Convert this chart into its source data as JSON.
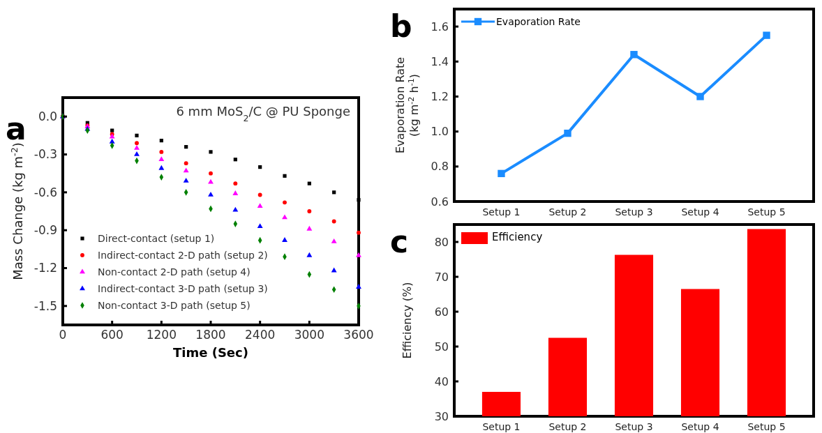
{
  "chart_data": [
    {
      "type": "scatter",
      "xlabel": "Time (Sec)",
      "ylabel": "Mass Change (kg m$^{-2}$)",
      "annotations": [
        "a",
        "6 mm MoS$_{2}$/C @ PU Sponge"
      ],
      "x": [
        0,
        300,
        600,
        900,
        1200,
        1500,
        1800,
        2100,
        2400,
        2700,
        3000,
        3300,
        3600
      ],
      "xlim": [
        0,
        3600
      ],
      "xticks": [
        0,
        600,
        1200,
        1800,
        2400,
        3000,
        3600
      ],
      "ylim": [
        -1.65,
        0.15
      ],
      "yticks": [
        {
          "value": 0,
          "label": "0.0"
        },
        -0.3,
        -0.6,
        -0.9,
        -1.2,
        -1.5
      ],
      "legend": "bottom left",
      "series": [
        {
          "name": "Direct-contact (setup 1)",
          "color": "#000000",
          "marker": "square",
          "values": [
            0,
            -0.05,
            -0.11,
            -0.15,
            -0.19,
            -0.24,
            -0.28,
            -0.34,
            -0.4,
            -0.47,
            -0.53,
            -0.6,
            -0.66
          ]
        },
        {
          "name": "Indirect-contact 2-D path (setup 2)",
          "color": "#ff0000",
          "marker": "circle",
          "values": [
            0,
            -0.07,
            -0.14,
            -0.21,
            -0.28,
            -0.37,
            -0.45,
            -0.53,
            -0.62,
            -0.68,
            -0.75,
            -0.83,
            -0.92
          ]
        },
        {
          "name": "Non-contact 2-D path (setup 4)",
          "color": "#ff00ff",
          "marker": "triangle",
          "values": [
            0,
            -0.08,
            -0.16,
            -0.25,
            -0.34,
            -0.43,
            -0.52,
            -0.61,
            -0.71,
            -0.8,
            -0.89,
            -0.99,
            -1.1
          ]
        },
        {
          "name": "Indirect-contact 3-D path (setup 3)",
          "color": "#0000ff",
          "marker": "triangle",
          "values": [
            0,
            -0.1,
            -0.2,
            -0.3,
            -0.41,
            -0.51,
            -0.62,
            -0.74,
            -0.87,
            -0.98,
            -1.1,
            -1.22,
            -1.35
          ]
        },
        {
          "name": "Non-contact 3-D path (setup 5)",
          "color": "#008000",
          "marker": "diamond",
          "values": [
            0,
            -0.11,
            -0.23,
            -0.35,
            -0.48,
            -0.6,
            -0.73,
            -0.85,
            -0.98,
            -1.11,
            -1.25,
            -1.37,
            -1.5
          ]
        }
      ]
    },
    {
      "type": "line",
      "ylabel": "Evaporation Rate (kg m$^{-2}$ h$^{-1}$)",
      "annotations": [
        "b"
      ],
      "categories": [
        "Setup 1",
        "Setup 2",
        "Setup 3",
        "Setup 4",
        "Setup 5"
      ],
      "ylim": [
        0.6,
        1.7
      ],
      "yticks": [
        0.6,
        0.8,
        {
          "value": 1,
          "label": "1.0"
        },
        1.2,
        1.4,
        1.6
      ],
      "legend": "top left",
      "marker": "square",
      "series": [
        {
          "name": "Evaporation Rate",
          "color": "#1a8cff",
          "values": [
            0.76,
            0.99,
            1.44,
            1.2,
            1.55
          ]
        }
      ]
    },
    {
      "type": "bar",
      "ylabel": "Efficiency (%)",
      "annotations": [
        "c"
      ],
      "categories": [
        "Setup 1",
        "Setup 2",
        "Setup 3",
        "Setup 4",
        "Setup 5"
      ],
      "ylim": [
        30,
        85
      ],
      "yticks": [
        30,
        40,
        50,
        60,
        70,
        80
      ],
      "legend": "top left",
      "series": [
        {
          "name": "Efficiency",
          "color": "#ff0000",
          "values": [
            37,
            52.5,
            76.3,
            66.5,
            83.7
          ]
        }
      ]
    }
  ]
}
